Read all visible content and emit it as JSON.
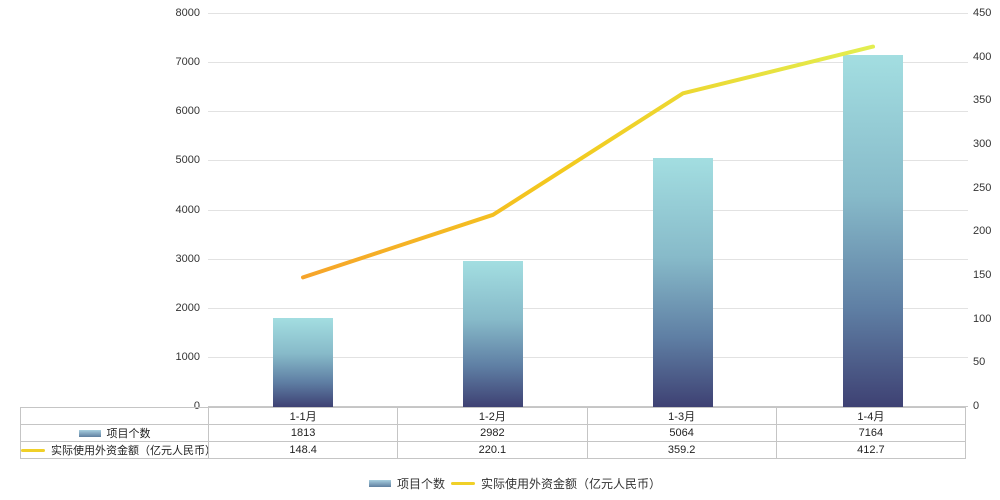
{
  "chart_data": {
    "type": "bar+line",
    "title": "",
    "categories": [
      "1-1月",
      "1-2月",
      "1-3月",
      "1-4月"
    ],
    "series": [
      {
        "name": "项目个数",
        "type": "bar",
        "axis": "left",
        "values": [
          1813,
          2982,
          5064,
          7164
        ]
      },
      {
        "name": "实际使用外资金额（亿元人民币）",
        "type": "line",
        "axis": "right",
        "values": [
          148.4,
          220.1,
          359.2,
          412.7
        ]
      }
    ],
    "left_axis": {
      "min": 0,
      "max": 8000,
      "step": 1000
    },
    "right_axis": {
      "min": 0,
      "max": 450,
      "step": 50
    },
    "grid": true,
    "legend_position": "bottom",
    "table_shown": true,
    "colors": {
      "bar_gradient_top": "#a3dee1",
      "bar_gradient_mid": "#87bac9",
      "bar_gradient_low": "#5f7fa4",
      "bar_gradient_bottom": "#3e4173",
      "line_gradient_start": "#f6a42a",
      "line_gradient_mid": "#f3c91e",
      "line_gradient_end": "#e2ee50",
      "legend_line_swatch": "#f0d028",
      "swatch_bar_top": "#a8cfe0",
      "swatch_bar_bottom": "#5f7fa0",
      "grid_color": "#e2e2e2",
      "axis_line_color": "#c8c8c8",
      "table_border_color": "#c5c5c5"
    }
  },
  "legend": {
    "items": [
      {
        "label": "项目个数"
      },
      {
        "label": "实际使用外资金额（亿元人民币）"
      }
    ]
  }
}
